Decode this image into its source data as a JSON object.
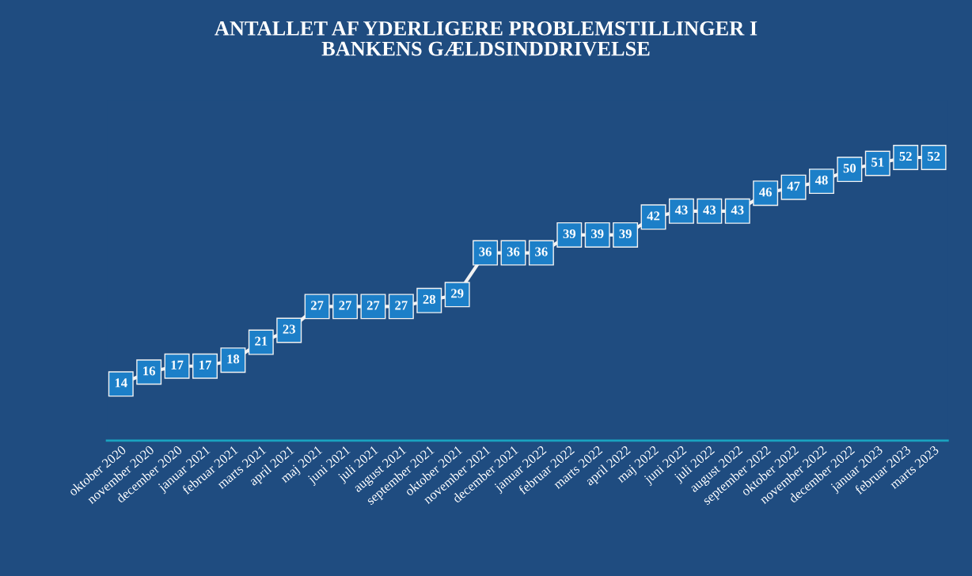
{
  "chart_data": {
    "type": "line",
    "title": "ANTALLET AF YDERLIGERE PROBLEMSTILLINGER I\nBANKENS GÆLDSINDDRIVELSE",
    "categories": [
      "oktober 2020",
      "november 2020",
      "december 2020",
      "januar 2021",
      "februar 2021",
      "marts 2021",
      "april 2021",
      "maj 2021",
      "juni 2021",
      "juli 2021",
      "august 2021",
      "september 2021",
      "oktober 2021",
      "november 2021",
      "december 2021",
      "januar 2022",
      "februar 2022",
      "marts 2022",
      "april 2022",
      "maj 2022",
      "juni 2022",
      "juli 2022",
      "august 2022",
      "september 2022",
      "oktober 2022",
      "november 2022",
      "december 2022",
      "januar 2023",
      "februar 2023",
      "marts 2023"
    ],
    "series": [
      {
        "color": "#f2f2f2",
        "values": [
          14,
          16,
          17,
          17,
          18,
          21,
          23,
          27,
          27,
          27,
          27,
          28,
          29,
          36,
          36,
          36,
          39,
          39,
          39,
          42,
          43,
          43,
          43,
          46,
          47,
          48,
          50,
          51,
          52,
          52
        ]
      }
    ],
    "tick_labels": "x",
    "data_labels": true,
    "marker": "square",
    "line_style": "solid",
    "grid": false,
    "legend": false
  }
}
